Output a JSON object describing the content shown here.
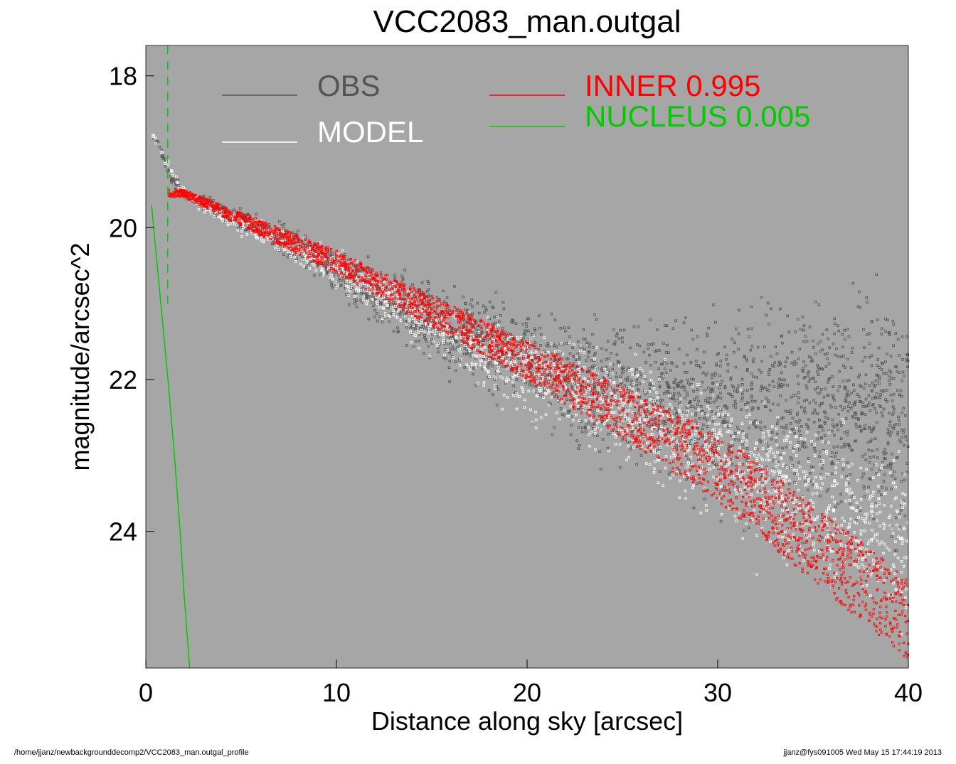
{
  "chart_data": {
    "type": "scatter",
    "title": "VCC2083_man.outgal",
    "xlabel": "Distance along sky [arcsec]",
    "ylabel": "magnitude/arcsec^2",
    "xlim": [
      0,
      40
    ],
    "ylim": [
      25.8,
      17.6
    ],
    "y_inverted": true,
    "x_ticks": [
      "0",
      "10",
      "20",
      "30",
      "40"
    ],
    "y_ticks": [
      "18",
      "20",
      "22",
      "24"
    ],
    "background": "#a6a6a6",
    "series": [
      {
        "name": "OBS",
        "color": "#555555",
        "kind": "points",
        "x": [
          0.4,
          0.8,
          1.2,
          2,
          3,
          4,
          5,
          6,
          8,
          10,
          12,
          15,
          18,
          20,
          22,
          25,
          28,
          30,
          33,
          36,
          38,
          40
        ],
        "y": [
          18.8,
          19.0,
          19.3,
          19.55,
          19.65,
          19.8,
          19.9,
          20.0,
          20.25,
          20.55,
          20.85,
          21.25,
          21.55,
          21.75,
          21.95,
          22.15,
          22.3,
          22.35,
          22.4,
          22.45,
          22.5,
          22.5
        ]
      },
      {
        "name": "MODEL",
        "color": "#ffffff",
        "kind": "points",
        "x": [
          0.4,
          1,
          2,
          4,
          6,
          8,
          10,
          15,
          20,
          25,
          30,
          35,
          40
        ],
        "y": [
          18.8,
          19.1,
          19.55,
          19.85,
          20.05,
          20.3,
          20.55,
          21.3,
          21.9,
          22.4,
          23.0,
          23.6,
          24.1
        ]
      },
      {
        "name": "INNER  0.995",
        "color": "#ff0000",
        "kind": "band",
        "x": [
          2,
          10,
          20,
          30,
          40
        ],
        "y_top": [
          19.5,
          20.3,
          21.5,
          22.7,
          24.6
        ],
        "y_bottom": [
          19.6,
          20.6,
          22.0,
          23.6,
          25.7
        ]
      },
      {
        "name": "NUCLEUS  0.005",
        "color": "#00cc00",
        "kind": "line",
        "x": [
          0.3,
          0.6,
          0.9,
          1.2,
          1.5,
          1.8,
          2.0,
          2.3
        ],
        "y": [
          19.7,
          20.5,
          21.3,
          22.1,
          23.0,
          24.0,
          24.8,
          25.8
        ]
      }
    ]
  },
  "legend": {
    "obs": {
      "label": "OBS",
      "color": "#555555"
    },
    "model": {
      "label": "MODEL",
      "color": "#ffffff"
    },
    "inner": {
      "label": "INNER  0.995",
      "color": "#ff0000"
    },
    "nucleus": {
      "label": "NUCLEUS  0.005",
      "color": "#00cc00"
    }
  },
  "footer": {
    "left": "/home/jjanz/newbackgrounddecomp2/VCC2083_man.outgal_profile",
    "right": "jjanz@fys091005  Wed May 15 17:44:19 2013"
  }
}
